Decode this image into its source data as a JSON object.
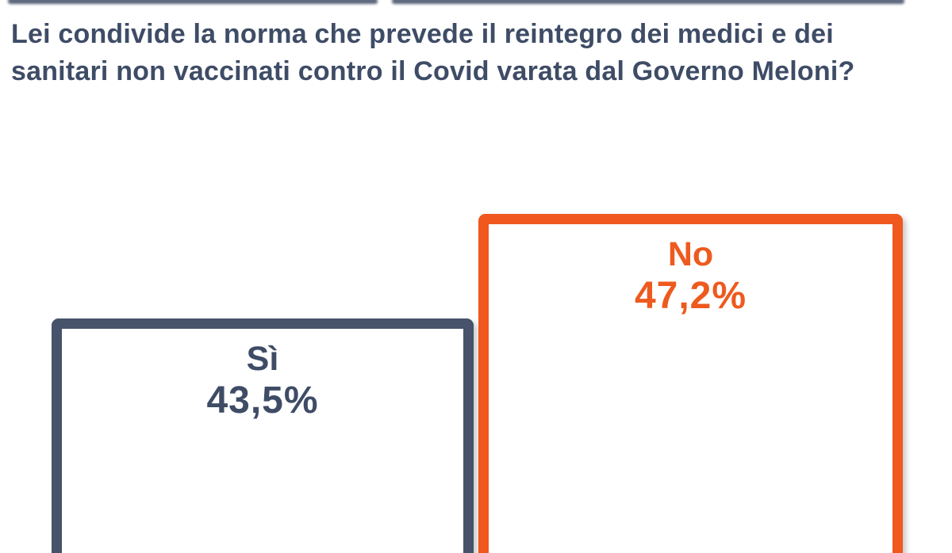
{
  "question": {
    "line1": "Lei condivide la norma che prevede il reintegro dei medici e dei",
    "line2": "sanitari non vaccinati contro il Covid varata dal Governo Meloni?"
  },
  "bars": [
    {
      "label": "Sì",
      "value": "43,5%",
      "border_color": "#46536B",
      "text_color": "#3E4C66"
    },
    {
      "label": "No",
      "value": "47,2%",
      "border_color": "#F0581D",
      "text_color": "#EE5A1E"
    }
  ],
  "colors": {
    "question_text": "#3E4C66",
    "si_accent": "#46536B",
    "no_accent": "#F0581D",
    "background": "#FFFFFF"
  },
  "chart_data": {
    "type": "bar",
    "title": "Lei condivide la norma che prevede il reintegro dei medici e dei sanitari non vaccinati contro il Covid varata dal Governo Meloni?",
    "categories": [
      "Sì",
      "No"
    ],
    "values": [
      43.5,
      47.2
    ],
    "value_labels": [
      "43,5%",
      "47,2%"
    ],
    "series_colors": [
      "#46536B",
      "#F0581D"
    ],
    "bar_style": "outlined white-filled columns, category and value labels inside top of each bar, columns cropped at bottom edge of image",
    "legend": "none",
    "grid": false,
    "xlabel": "",
    "ylabel": ""
  }
}
